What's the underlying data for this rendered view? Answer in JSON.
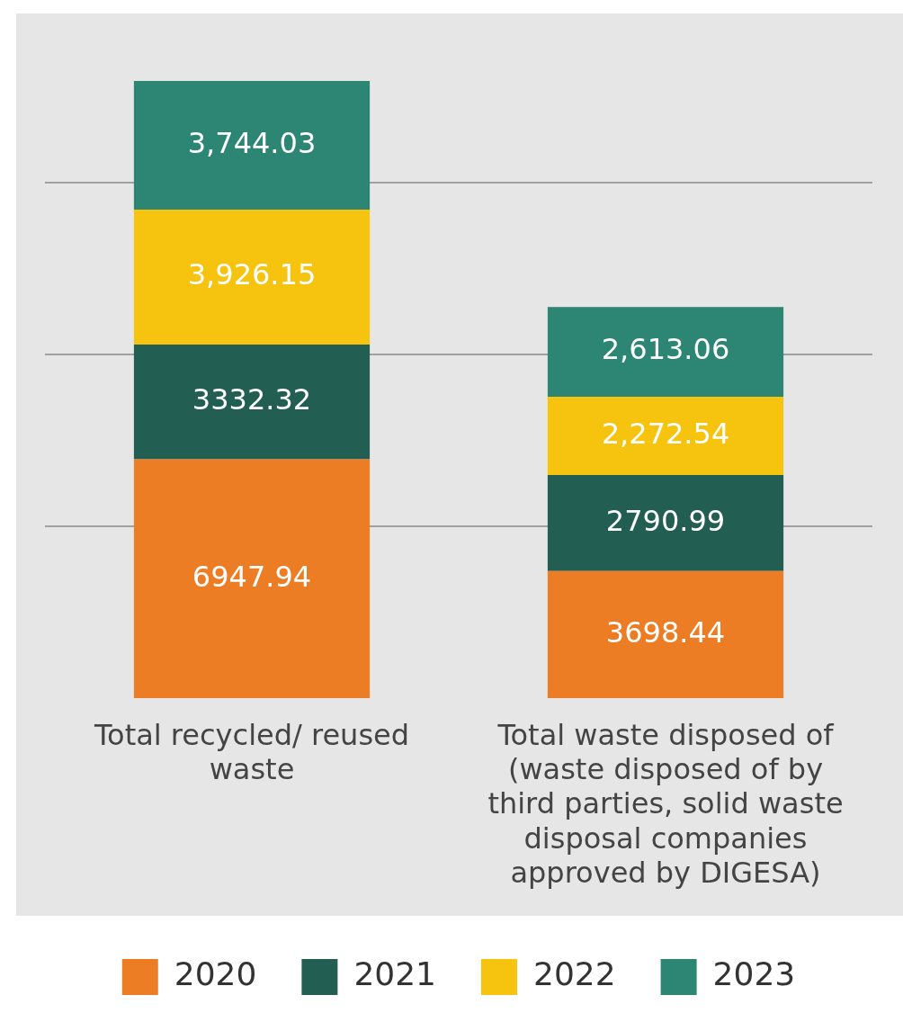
{
  "chart_data": {
    "type": "bar",
    "stacked": true,
    "categories": [
      "Total recycled/ reused waste",
      "Total waste disposed of (waste disposed of by third parties, solid waste disposal companies approved by DIGESA)"
    ],
    "series": [
      {
        "name": "2020",
        "color": "#ec7d24",
        "values": [
          6947.94,
          3698.44
        ],
        "value_labels": [
          "6947.94",
          "3698.44"
        ]
      },
      {
        "name": "2021",
        "color": "#225e52",
        "values": [
          3332.32,
          2790.99
        ],
        "value_labels": [
          "3332.32",
          "2790.99"
        ]
      },
      {
        "name": "2022",
        "color": "#f6c30f",
        "values": [
          3926.15,
          2272.54
        ],
        "value_labels": [
          "3,926.15",
          "2,272.54"
        ]
      },
      {
        "name": "2023",
        "color": "#2d8574",
        "values": [
          3744.03,
          2613.06
        ],
        "value_labels": [
          "3,744.03",
          "2,613.06"
        ]
      }
    ],
    "yticks": [
      {
        "value": 5000,
        "label": null
      },
      {
        "value": 10000,
        "label": null
      },
      {
        "value": 15000,
        "label": null
      }
    ],
    "grid": "y",
    "tick_labels": "x",
    "legend": "bottom"
  }
}
